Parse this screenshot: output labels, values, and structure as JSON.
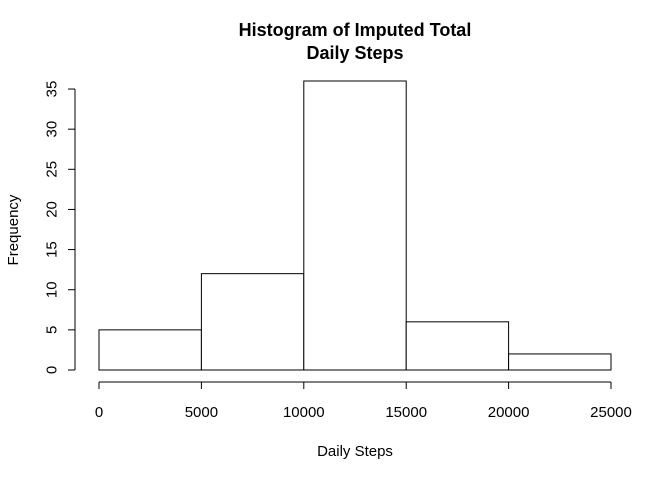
{
  "chart_data": {
    "type": "bar",
    "title_lines": [
      "Histogram of Imputed Total",
      "Daily Steps"
    ],
    "xlabel": "Daily Steps",
    "ylabel": "Frequency",
    "bins": [
      {
        "from": 0,
        "to": 5000,
        "count": 5
      },
      {
        "from": 5000,
        "to": 10000,
        "count": 12
      },
      {
        "from": 10000,
        "to": 15000,
        "count": 36
      },
      {
        "from": 15000,
        "to": 20000,
        "count": 6
      },
      {
        "from": 20000,
        "to": 25000,
        "count": 2
      }
    ],
    "xlim": [
      0,
      25000
    ],
    "ylim": [
      0,
      36
    ],
    "x_ticks": [
      0,
      5000,
      10000,
      15000,
      20000,
      25000
    ],
    "x_tick_labels": [
      "0",
      "5000",
      "10000",
      "15000",
      "20000",
      "25000"
    ],
    "y_ticks": [
      0,
      5,
      10,
      15,
      20,
      25,
      30,
      35
    ],
    "y_tick_labels": [
      "0",
      "5",
      "10",
      "15",
      "20",
      "25",
      "30",
      "35"
    ],
    "grid": false,
    "legend": "none",
    "bar_fill": "#ffffff",
    "bar_stroke": "#000000"
  }
}
